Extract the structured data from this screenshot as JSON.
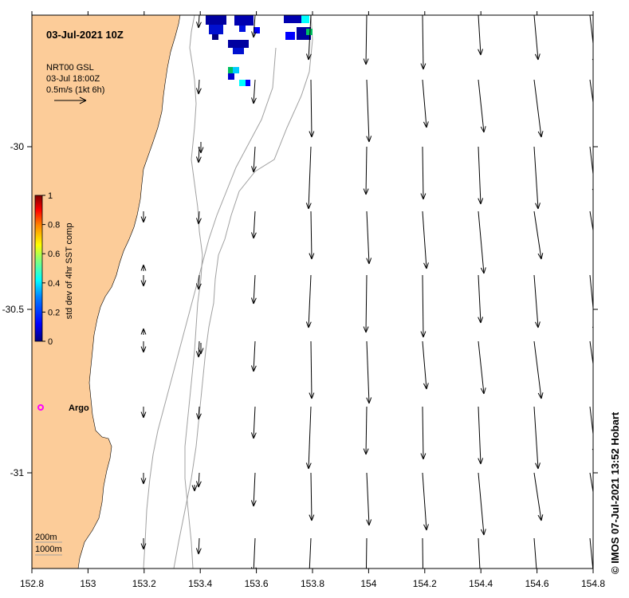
{
  "map": {
    "date_title": "03-Jul-2021 10Z",
    "current_product": "NRT00 GSL",
    "current_time": "03-Jul 18:00Z",
    "vector_scale_label": "0.5m/s (1kt 6h)",
    "colorbar": {
      "label": "std dev of 4hr SST comp",
      "ticks": [
        "0",
        "0.2",
        "0.4",
        "0.6",
        "0.8",
        "1"
      ],
      "colors": [
        "#00007f",
        "#0000ff",
        "#007fff",
        "#00ffff",
        "#7fff7f",
        "#ffff00",
        "#ff7f00",
        "#ff0000",
        "#7f0000"
      ]
    },
    "x_ticks": [
      "152.8",
      "153",
      "153.2",
      "153.4",
      "153.6",
      "153.8",
      "154",
      "154.2",
      "154.4",
      "154.6",
      "154.8"
    ],
    "y_ticks": [
      "-30",
      "-30.5",
      "-31"
    ],
    "argo_label": "Argo",
    "bathymetry_labels": [
      "200m",
      "1000m"
    ],
    "credit": "© IMOS 07-Jul-2021 13:52 Hobart",
    "land_color": "#fccc99",
    "argo_color": "#ff00ff"
  }
}
